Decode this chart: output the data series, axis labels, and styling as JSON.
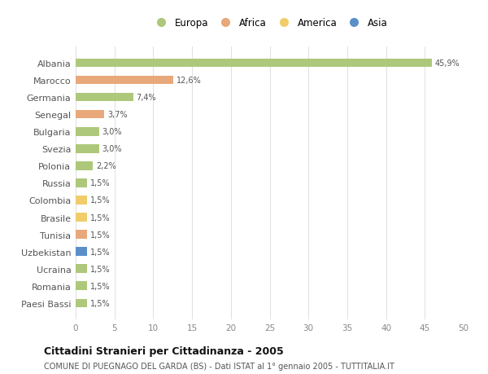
{
  "categories": [
    "Albania",
    "Marocco",
    "Germania",
    "Senegal",
    "Bulgaria",
    "Svezia",
    "Polonia",
    "Russia",
    "Colombia",
    "Brasile",
    "Tunisia",
    "Uzbekistan",
    "Ucraina",
    "Romania",
    "Paesi Bassi"
  ],
  "values": [
    45.9,
    12.6,
    7.4,
    3.7,
    3.0,
    3.0,
    2.2,
    1.5,
    1.5,
    1.5,
    1.5,
    1.5,
    1.5,
    1.5,
    1.5
  ],
  "labels": [
    "45,9%",
    "12,6%",
    "7,4%",
    "3,7%",
    "3,0%",
    "3,0%",
    "2,2%",
    "1,5%",
    "1,5%",
    "1,5%",
    "1,5%",
    "1,5%",
    "1,5%",
    "1,5%",
    "1,5%"
  ],
  "colors": [
    "#adc87a",
    "#e8a87a",
    "#adc87a",
    "#e8a87a",
    "#adc87a",
    "#adc87a",
    "#adc87a",
    "#adc87a",
    "#f0cc6a",
    "#f0cc6a",
    "#e8a87a",
    "#5b8fc8",
    "#adc87a",
    "#adc87a",
    "#adc87a"
  ],
  "legend_labels": [
    "Europa",
    "Africa",
    "America",
    "Asia"
  ],
  "legend_colors": [
    "#adc87a",
    "#e8a87a",
    "#f0cc6a",
    "#5b8fc8"
  ],
  "title": "Cittadini Stranieri per Cittadinanza - 2005",
  "subtitle": "COMUNE DI PUEGNAGO DEL GARDA (BS) - Dati ISTAT al 1° gennaio 2005 - TUTTITALIA.IT",
  "xlim": [
    0,
    50
  ],
  "xticks": [
    0,
    5,
    10,
    15,
    20,
    25,
    30,
    35,
    40,
    45,
    50
  ],
  "background_color": "#ffffff",
  "grid_color": "#e0e0e0",
  "bar_height": 0.5
}
